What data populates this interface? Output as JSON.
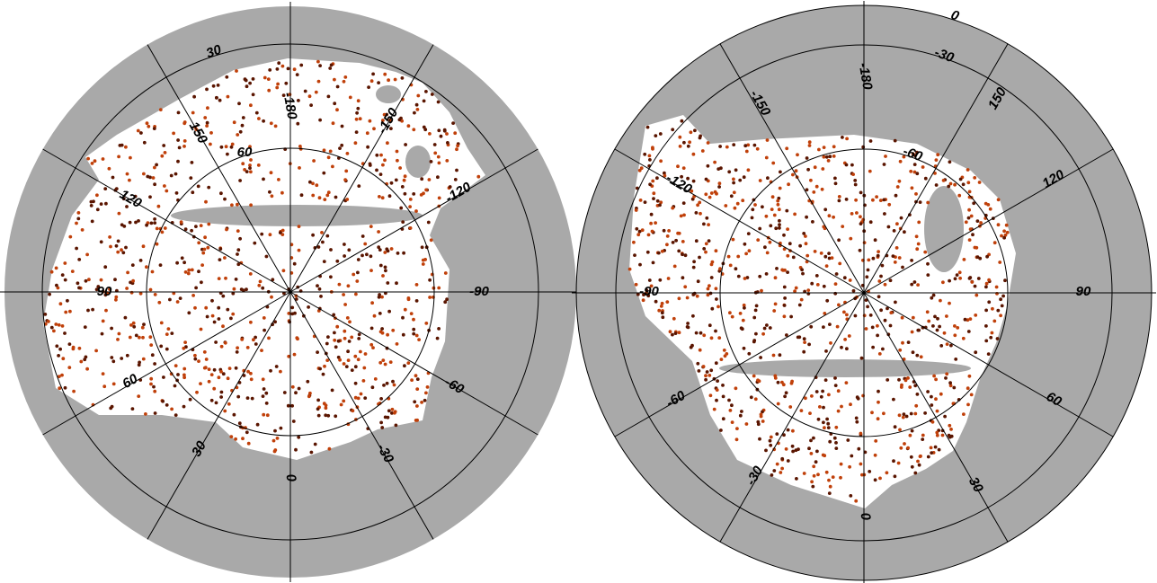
{
  "maps": [
    {
      "labels": [
        "30",
        "150",
        "-180",
        "-150",
        "60",
        "120",
        "-120",
        "90",
        "-90",
        "60",
        "-60",
        "30",
        "-30",
        "0"
      ]
    },
    {
      "labels": [
        "0",
        "-30",
        "-180",
        "-150",
        "150",
        "-60",
        "120",
        "-120",
        "-90",
        "90",
        "60",
        "-60",
        "30",
        "-30",
        "0"
      ]
    }
  ]
}
